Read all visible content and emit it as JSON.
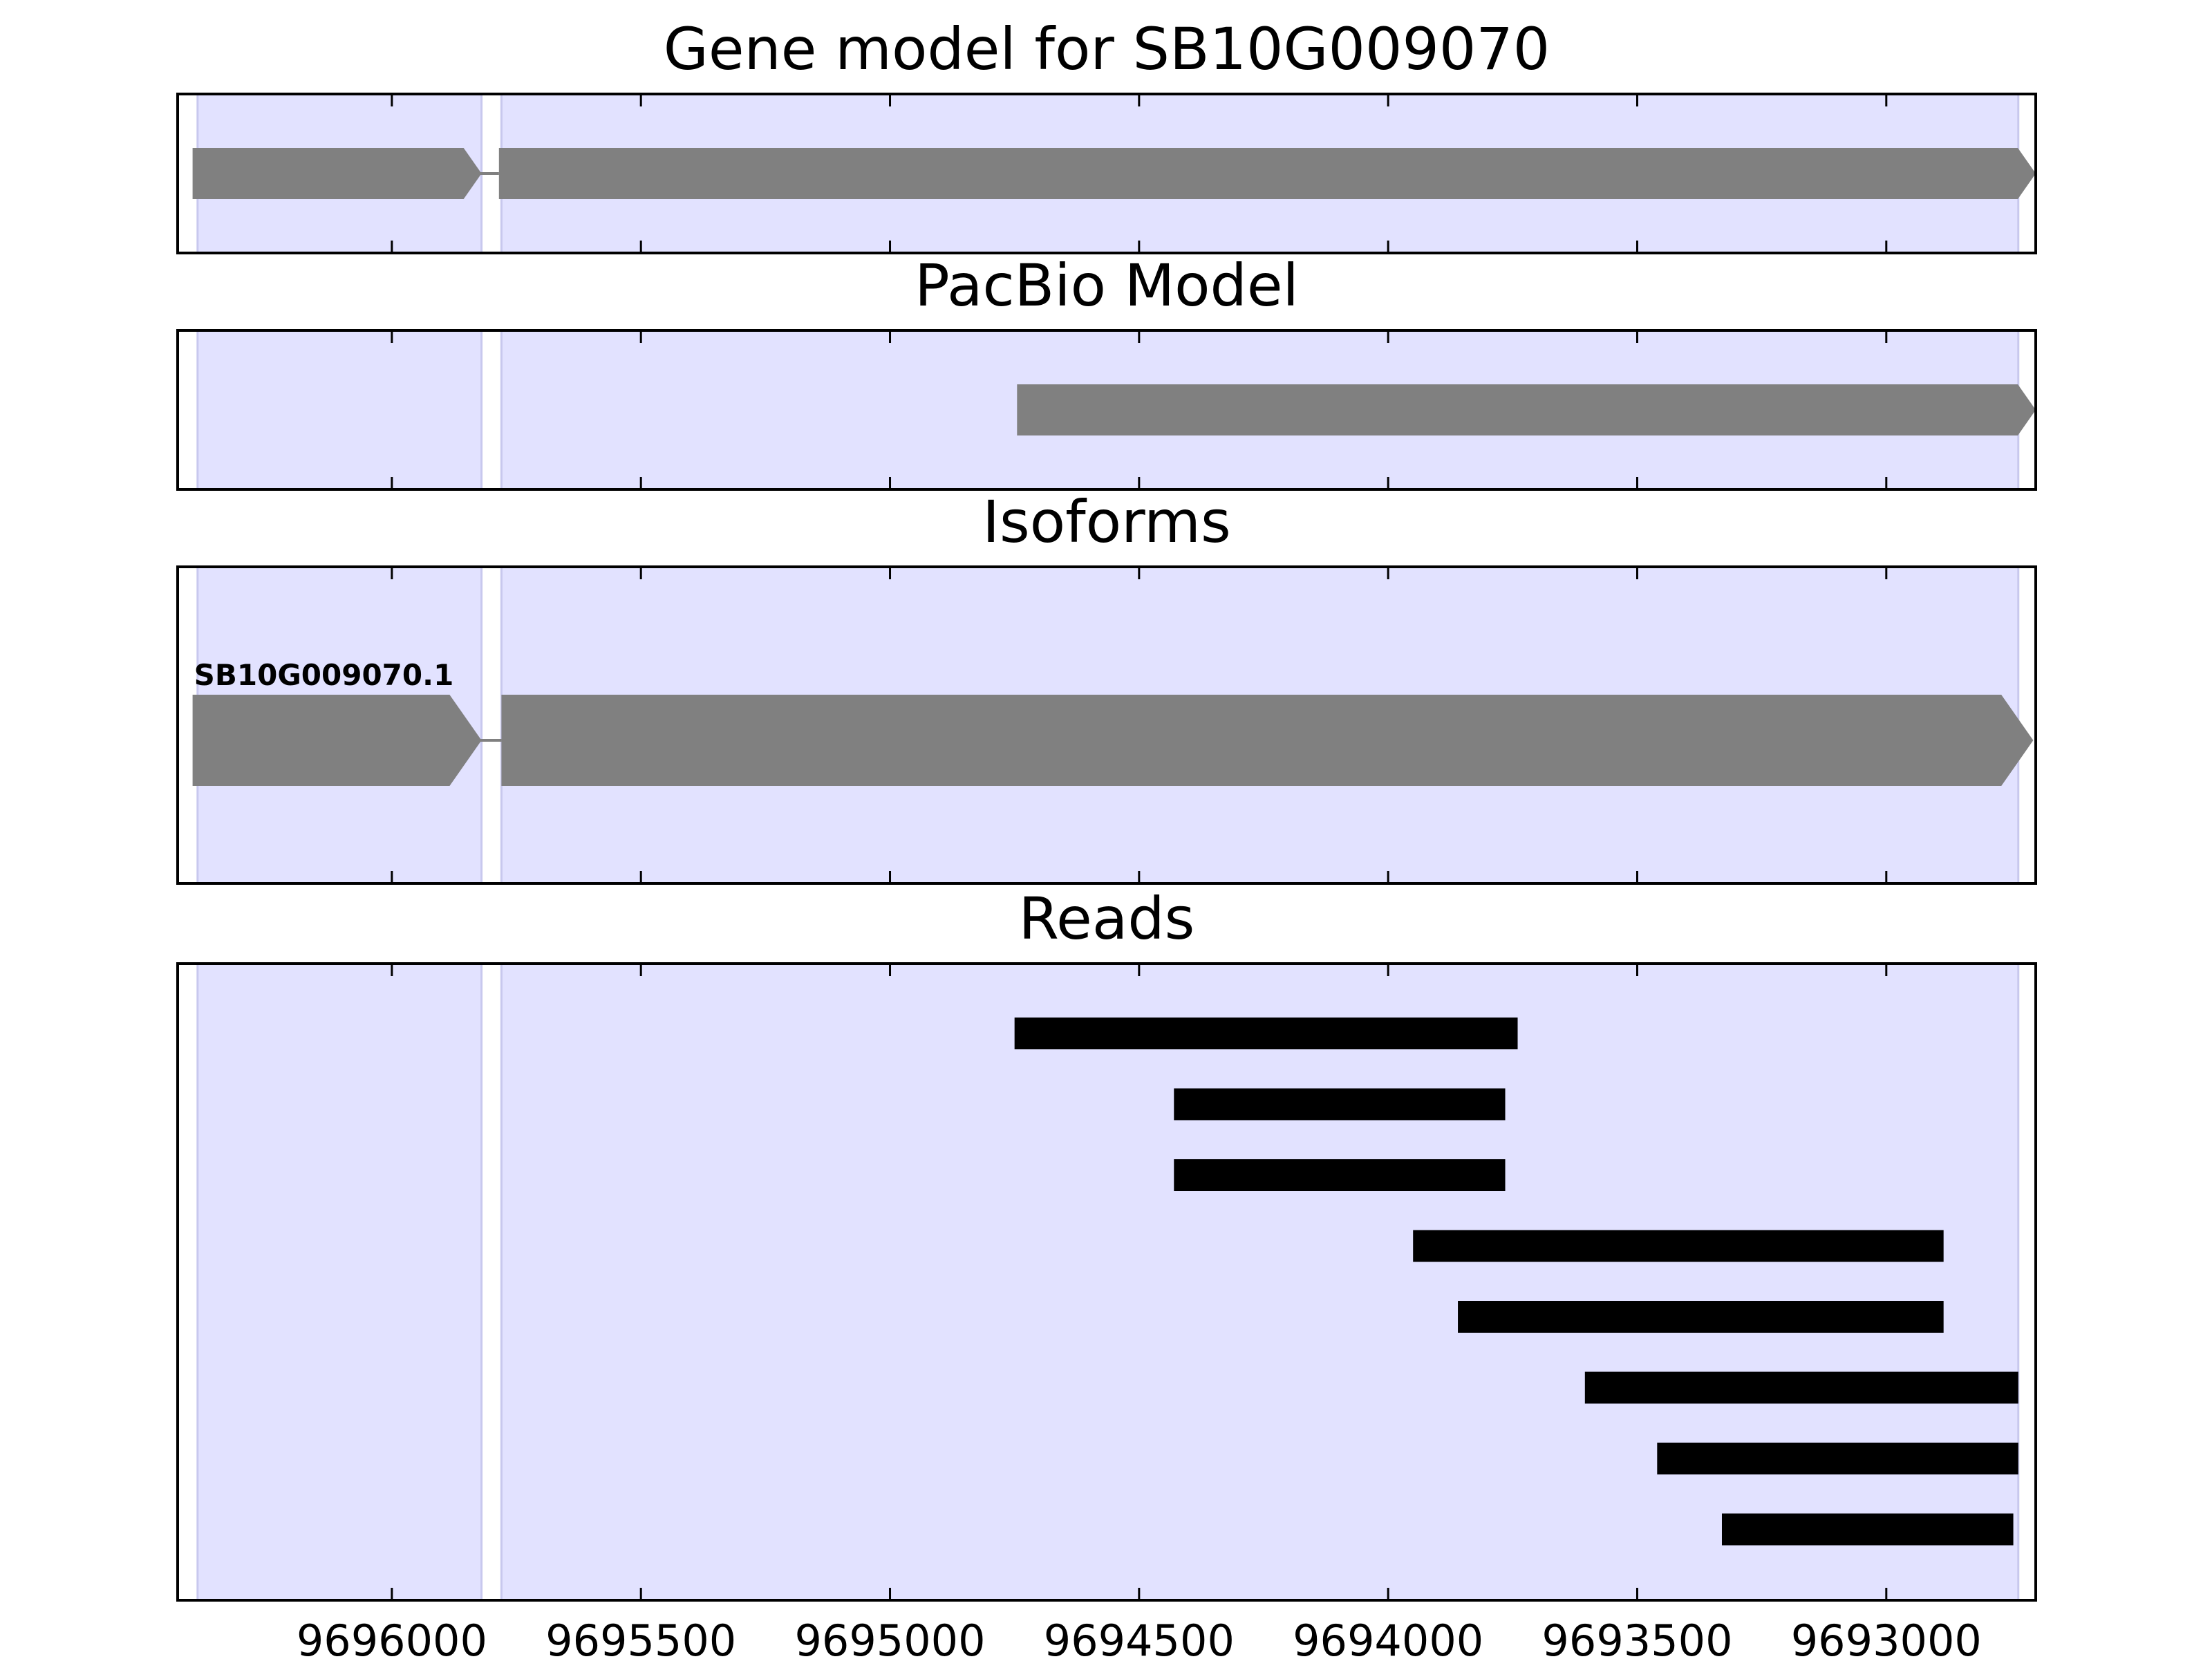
{
  "chart_data": {
    "type": "gene_track",
    "title": "Gene model for SB10G009070",
    "x_axis": {
      "reversed": true,
      "xlim": [
        9696430,
        9692700
      ],
      "ticks": [
        9696000,
        9695500,
        9695000,
        9694500,
        9694000,
        9693500,
        9693000
      ],
      "tick_labels": [
        "9696000",
        "9695500",
        "9695000",
        "9694500",
        "9694000",
        "9693500",
        "9693000"
      ]
    },
    "exon_regions": [
      {
        "start": 9696390,
        "end": 9695820
      },
      {
        "start": 9695780,
        "end": 9692735
      }
    ],
    "panels": [
      {
        "id": "gene-model",
        "title": "Gene model for SB10G009070",
        "exons": [
          {
            "start": 9696400,
            "end": 9695820
          },
          {
            "start": 9695785,
            "end": 9692700
          }
        ],
        "strand": "-"
      },
      {
        "id": "pacbio",
        "title": "PacBio Model",
        "exons": [
          {
            "start": 9694745,
            "end": 9692700
          }
        ],
        "strand": "-"
      },
      {
        "id": "isoforms",
        "title": "Isoforms",
        "isoforms": [
          {
            "name": "SB10G009070.1",
            "exons": [
              {
                "start": 9696400,
                "end": 9695820
              },
              {
                "start": 9695780,
                "end": 9692705
              }
            ],
            "strand": "-"
          }
        ]
      },
      {
        "id": "reads",
        "title": "Reads",
        "reads": [
          {
            "start": 9694750,
            "end": 9693740
          },
          {
            "start": 9694430,
            "end": 9693765
          },
          {
            "start": 9694430,
            "end": 9693765
          },
          {
            "start": 9693950,
            "end": 9692885
          },
          {
            "start": 9693860,
            "end": 9692885
          },
          {
            "start": 9693605,
            "end": 9692735
          },
          {
            "start": 9693460,
            "end": 9692735
          },
          {
            "start": 9693330,
            "end": 9692745
          }
        ]
      }
    ],
    "colors": {
      "exon_region": "#e2e2ff",
      "region_edge": "#c8c8ee",
      "exon": "#808080",
      "read": "#000000",
      "frame": "#000000"
    }
  }
}
